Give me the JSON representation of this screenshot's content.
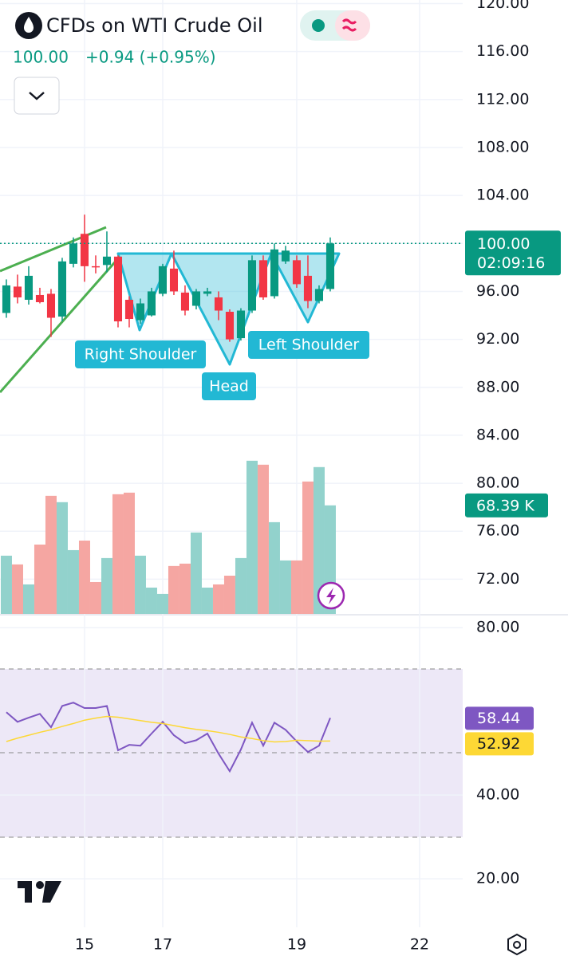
{
  "chart_data": [
    {
      "type": "candlestick",
      "title": "CFDs on WTI Crude Oil",
      "last_price": {
        "value": 100,
        "label": "100.00"
      },
      "change": "+0.94 (+0.95%)",
      "countdown": "02:09:16",
      "annotations": [
        "Right Shoulder",
        "Head",
        "Left Shoulder"
      ],
      "up_color": "#089981",
      "down_color": "#f23645",
      "open": [
        94.2,
        96.4,
        95.3,
        95.7,
        95.8,
        93.9,
        98.3,
        100.8,
        98.1,
        98.2,
        98.9,
        95.3,
        93.6,
        94.0,
        95.8,
        97.9,
        95.9,
        94.8,
        95.8,
        95.5,
        94.3,
        92.1,
        94.4,
        98.6,
        95.6,
        98.5,
        98.6,
        97.3,
        95.2,
        96.2
      ],
      "high": [
        97.0,
        97.4,
        98.1,
        96.3,
        96.2,
        98.8,
        100.5,
        102.4,
        99.0,
        101.0,
        99.0,
        95.6,
        95.4,
        96.3,
        98.3,
        99.4,
        96.5,
        96.2,
        96.3,
        96.0,
        94.5,
        94.6,
        99.0,
        99.0,
        100.0,
        99.8,
        99.0,
        99.0,
        96.5,
        100.5
      ],
      "low": [
        93.8,
        95.0,
        94.9,
        95.0,
        92.2,
        93.5,
        98.0,
        96.8,
        97.5,
        97.6,
        93.0,
        93.0,
        93.3,
        93.9,
        95.6,
        95.7,
        94.0,
        94.5,
        95.6,
        93.6,
        91.8,
        91.9,
        94.2,
        95.3,
        95.4,
        98.3,
        96.3,
        94.6,
        95.0,
        96.0
      ],
      "close": [
        96.5,
        95.5,
        97.3,
        95.1,
        93.8,
        98.5,
        100.0,
        98.1,
        98.0,
        98.9,
        93.5,
        93.7,
        95.0,
        96.0,
        98.1,
        96.0,
        94.4,
        96.0,
        96.0,
        94.4,
        92.0,
        94.4,
        98.6,
        95.5,
        99.5,
        99.4,
        96.6,
        95.2,
        96.2,
        100.0
      ],
      "xlim": [
        -0.57,
        40.86
      ],
      "xticks": [
        {
          "value": 7,
          "label": "15"
        },
        {
          "value": 14,
          "label": "17"
        },
        {
          "value": 26,
          "label": "19"
        },
        {
          "value": 37,
          "label": "22"
        }
      ],
      "ylim": [
        69.1,
        120.3
      ],
      "yticks": [
        {
          "value": 120,
          "label": "120.00"
        },
        {
          "value": 116,
          "label": "116.00"
        },
        {
          "value": 112,
          "label": "112.00"
        },
        {
          "value": 108,
          "label": "108.00"
        },
        {
          "value": 104,
          "label": "104.00"
        },
        {
          "value": 100,
          "label": "100.00"
        },
        {
          "value": 96,
          "label": "96.00"
        },
        {
          "value": 92,
          "label": "92.00"
        },
        {
          "value": 88,
          "label": "88.00"
        },
        {
          "value": 84,
          "label": "84.00"
        },
        {
          "value": 80,
          "label": "80.00"
        },
        {
          "value": 76,
          "label": "76.00"
        },
        {
          "value": 72,
          "label": "72.00"
        }
      ],
      "grid": true
    },
    {
      "type": "bar",
      "values": [
        36.7,
        31.2,
        18.6,
        43.7,
        74.4,
        70.4,
        40.2,
        46.2,
        20.1,
        35.2,
        75.4,
        76.4,
        36.7,
        16.6,
        12.6,
        30.2,
        31.7,
        51.3,
        16.6,
        18.6,
        24.1,
        35.2,
        96.5,
        94.0,
        57.8,
        33.7,
        33.7,
        83.4,
        92.5,
        68.39
      ],
      "value_labels": [
        null,
        null,
        null,
        null,
        null,
        null,
        null,
        null,
        null,
        null,
        null,
        null,
        null,
        null,
        null,
        null,
        null,
        null,
        null,
        null,
        null,
        null,
        null,
        null,
        null,
        null,
        null,
        null,
        null,
        "68.39 K"
      ],
      "up_color": "#92d2cc",
      "down_color": "#f5a6a2",
      "ylim": [
        0,
        115
      ]
    },
    {
      "type": "line",
      "series": [
        {
          "color": "#7e57c2",
          "values": [
            59.8,
            57.5,
            58.5,
            59.4,
            56.2,
            61.3,
            62.1,
            60.8,
            60.8,
            61.3,
            50.7,
            52.0,
            51.8,
            54.7,
            57.5,
            54.3,
            52.4,
            53.1,
            54.7,
            49.9,
            45.7,
            50.9,
            57.3,
            51.8,
            57.3,
            55.6,
            52.8,
            50.3,
            51.8,
            58.44
          ]
        },
        {
          "color": "#fdd835",
          "values": [
            52.8,
            53.6,
            54.3,
            55.0,
            55.6,
            56.4,
            57.1,
            57.9,
            58.4,
            58.8,
            58.6,
            58.2,
            57.8,
            57.4,
            57.1,
            56.6,
            56.1,
            55.7,
            55.4,
            55.0,
            54.5,
            53.9,
            53.5,
            53.0,
            52.7,
            52.8,
            53.1,
            53.0,
            52.9,
            52.92
          ]
        }
      ],
      "ylim": [
        8.4,
        82.9
      ],
      "yticks": [
        {
          "value": 80,
          "label": "80.00"
        },
        {
          "value": 40,
          "label": "40.00"
        },
        {
          "value": 20,
          "label": "20.00"
        }
      ]
    }
  ]
}
